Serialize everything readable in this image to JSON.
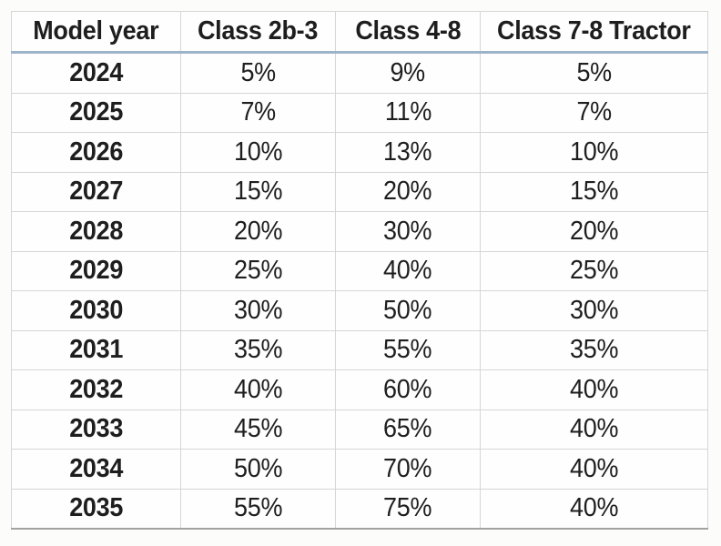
{
  "table": {
    "columns": [
      "Model year",
      "Class 2b-3",
      "Class 4-8",
      "Class 7-8 Tractor"
    ],
    "rows": [
      [
        "2024",
        "5%",
        "9%",
        "5%"
      ],
      [
        "2025",
        "7%",
        "11%",
        "7%"
      ],
      [
        "2026",
        "10%",
        "13%",
        "10%"
      ],
      [
        "2027",
        "15%",
        "20%",
        "15%"
      ],
      [
        "2028",
        "20%",
        "30%",
        "20%"
      ],
      [
        "2029",
        "25%",
        "40%",
        "25%"
      ],
      [
        "2030",
        "30%",
        "50%",
        "30%"
      ],
      [
        "2031",
        "35%",
        "55%",
        "35%"
      ],
      [
        "2032",
        "40%",
        "60%",
        "40%"
      ],
      [
        "2033",
        "45%",
        "65%",
        "40%"
      ],
      [
        "2034",
        "50%",
        "70%",
        "40%"
      ],
      [
        "2035",
        "55%",
        "75%",
        "40%"
      ]
    ]
  },
  "colors": {
    "header_underline": "#9db3ca",
    "grid_line": "#d6d6d6",
    "table_bottom_border": "#a2a2a2",
    "text": "#1e1e1e",
    "page_background": "#fcfcfa"
  },
  "chart_data": {
    "type": "table",
    "title": "",
    "columns": [
      "Model year",
      "Class 2b-3",
      "Class 4-8",
      "Class 7-8 Tractor"
    ],
    "categories": [
      "2024",
      "2025",
      "2026",
      "2027",
      "2028",
      "2029",
      "2030",
      "2031",
      "2032",
      "2033",
      "2034",
      "2035"
    ],
    "units": "percent",
    "series": [
      {
        "name": "Class 2b-3",
        "values": [
          5,
          7,
          10,
          15,
          20,
          25,
          30,
          35,
          40,
          45,
          50,
          55
        ]
      },
      {
        "name": "Class 4-8",
        "values": [
          9,
          11,
          13,
          20,
          30,
          40,
          50,
          55,
          60,
          65,
          70,
          75
        ]
      },
      {
        "name": "Class 7-8 Tractor",
        "values": [
          5,
          7,
          10,
          15,
          20,
          25,
          30,
          35,
          40,
          40,
          40,
          40
        ]
      }
    ]
  }
}
